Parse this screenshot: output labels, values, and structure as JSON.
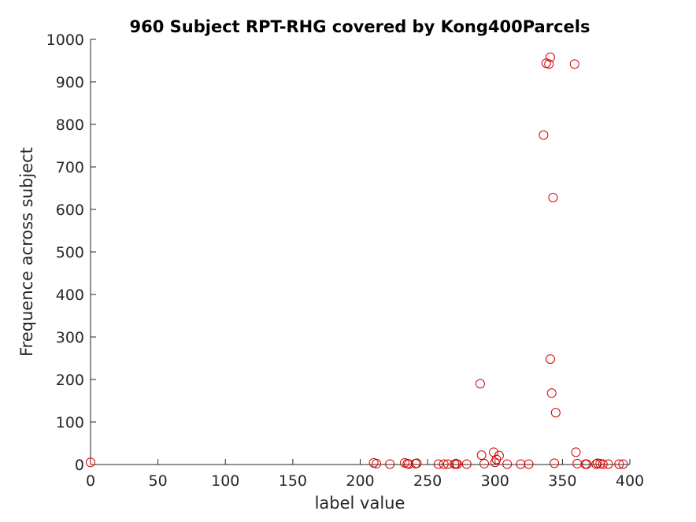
{
  "chart_data": {
    "type": "scatter",
    "title": "960 Subject RPT-RHG covered by Kong400Parcels",
    "xlabel": "label value",
    "ylabel": "Frequence across subject",
    "xlim": [
      0,
      400
    ],
    "ylim": [
      0,
      1000
    ],
    "xticks": [
      "0",
      "50",
      "100",
      "150",
      "200",
      "250",
      "300",
      "350",
      "400"
    ],
    "yticks": [
      "0",
      "100",
      "200",
      "300",
      "400",
      "500",
      "600",
      "700",
      "800",
      "900",
      "1000"
    ],
    "grid": false,
    "legend": "none",
    "marker": "open-circle",
    "marker_color": "#d40000",
    "axis_color": "#262626",
    "series": [
      {
        "x": [
          0,
          210,
          212,
          222,
          233,
          235,
          236,
          241,
          242,
          258,
          262,
          265,
          270,
          271,
          272,
          279,
          289,
          290,
          292,
          299,
          300,
          301,
          303,
          309,
          319,
          325,
          336,
          338,
          340,
          341,
          341,
          342,
          343,
          344,
          345,
          359,
          360,
          361,
          367,
          368,
          375,
          376,
          378,
          380,
          384,
          392,
          395
        ],
        "y": [
          5,
          4,
          2,
          1,
          4,
          2,
          1,
          2,
          3,
          1,
          1,
          1,
          1,
          2,
          1,
          1,
          190,
          22,
          2,
          29,
          5,
          12,
          21,
          1,
          1,
          1,
          775,
          944,
          942,
          958,
          248,
          168,
          628,
          3,
          122,
          942,
          29,
          2,
          1,
          1,
          1,
          3,
          2,
          1,
          1,
          1,
          1
        ]
      }
    ]
  }
}
